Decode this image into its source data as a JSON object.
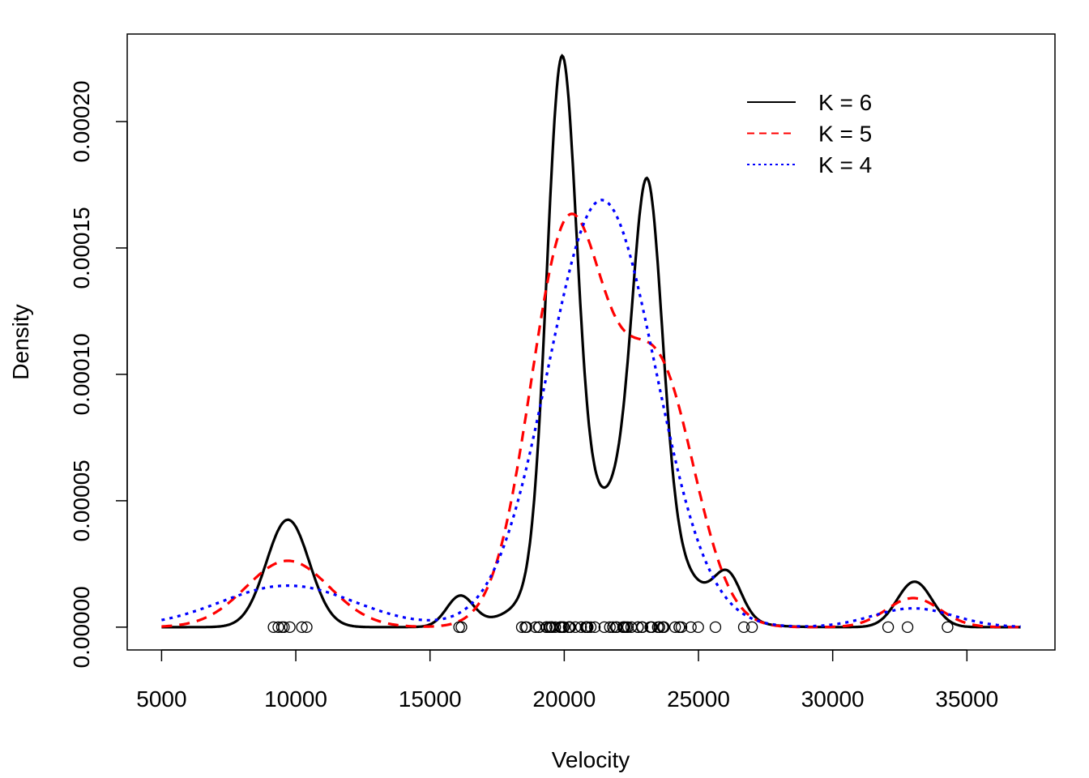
{
  "chart_data": {
    "type": "line",
    "title": "",
    "xlabel": "Velocity",
    "ylabel": "Density",
    "xlim": [
      5000,
      37000
    ],
    "ylim": [
      0,
      0.0002256
    ],
    "x_ticks": [
      5000,
      10000,
      15000,
      20000,
      25000,
      30000,
      35000
    ],
    "x_tick_labels": [
      "5000",
      "10000",
      "15000",
      "20000",
      "25000",
      "30000",
      "35000"
    ],
    "y_ticks": [
      0,
      5e-05,
      0.0001,
      0.00015,
      0.0002
    ],
    "y_tick_labels": [
      "0.00000",
      "0.00005",
      "0.00010",
      "0.00015",
      "0.00020"
    ],
    "grid": false,
    "legend_position": "top-right",
    "series": [
      {
        "name": "K = 6",
        "color": "#000000",
        "style": "solid",
        "components": [
          {
            "mean": 9705,
            "sd": 800,
            "weight": 0.0852
          },
          {
            "mean": 16120,
            "sd": 500,
            "weight": 0.0148
          },
          {
            "mean": 19900,
            "sd": 550,
            "weight": 0.27
          },
          {
            "mean": 22000,
            "sd": 2000,
            "weight": 0.261
          },
          {
            "mean": 23100,
            "sd": 550,
            "weight": 0.183
          },
          {
            "mean": 26100,
            "sd": 500,
            "weight": 0.02
          },
          {
            "mean": 33050,
            "sd": 650,
            "weight": 0.0293
          }
        ]
      },
      {
        "name": "K = 5",
        "color": "#ff0000",
        "style": "dashed",
        "components": [
          {
            "mean": 9700,
            "sd": 1550,
            "weight": 0.102
          },
          {
            "mean": 20150,
            "sd": 1400,
            "weight": 0.554
          },
          {
            "mean": 23500,
            "sd": 1370,
            "weight": 0.343
          },
          {
            "mean": 33000,
            "sd": 1000,
            "weight": 0.0288
          }
        ]
      },
      {
        "name": "K = 4",
        "color": "#0000ff",
        "style": "dotted",
        "components": [
          {
            "mean": 9700,
            "sd": 2500,
            "weight": 0.103
          },
          {
            "mean": 21400,
            "sd": 2000,
            "weight": 0.847
          },
          {
            "mean": 33000,
            "sd": 1500,
            "weight": 0.028
          }
        ]
      }
    ],
    "rug_points": [
      9172,
      9350,
      9483,
      9558,
      9775,
      10227,
      10406,
      16084,
      16170,
      18419,
      18552,
      18600,
      18927,
      19052,
      19070,
      19330,
      19343,
      19349,
      19440,
      19473,
      19529,
      19541,
      19547,
      19663,
      19846,
      19856,
      19863,
      19914,
      19918,
      19973,
      19989,
      20166,
      20175,
      20179,
      20196,
      20215,
      20221,
      20415,
      20629,
      20795,
      20821,
      20846,
      20875,
      20986,
      21137,
      21492,
      21701,
      21814,
      21921,
      21960,
      22185,
      22209,
      22242,
      22249,
      22314,
      22374,
      22495,
      22746,
      22747,
      22888,
      22914,
      23206,
      23241,
      23263,
      23484,
      23538,
      23542,
      23666,
      23706,
      23711,
      24129,
      24285,
      24289,
      24366,
      24717,
      24990,
      25633,
      26690,
      26995,
      32065,
      32789,
      34279
    ]
  }
}
